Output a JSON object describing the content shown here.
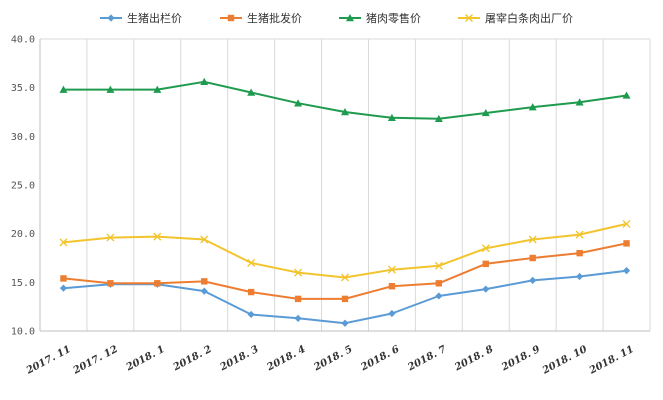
{
  "chart_data": {
    "type": "line",
    "title": "",
    "xlabel": "",
    "ylabel": "",
    "categories": [
      "2017.11",
      "2017.12",
      "2018.1",
      "2018.2",
      "2018.3",
      "2018.4",
      "2018.5",
      "2018.6",
      "2018.7",
      "2018.8",
      "2018.9",
      "2018.10",
      "2018.11"
    ],
    "x_tick_labels": [
      "2017. 11",
      "2017. 12",
      "2018. 1",
      "2018. 2",
      "2018. 3",
      "2018. 4",
      "2018. 5",
      "2018. 6",
      "2018. 7",
      "2018. 8",
      "2018. 9",
      "2018. 10",
      "2018. 11"
    ],
    "ylim": [
      10,
      40
    ],
    "y_ticks": [
      10,
      15,
      20,
      25,
      30,
      35,
      40
    ],
    "y_tick_labels": [
      "10.0",
      "15.0",
      "20.0",
      "25.0",
      "30.0",
      "35.0",
      "40.0"
    ],
    "grid": "vertical",
    "legend_position": "top",
    "series": [
      {
        "name": "生猪出栏价",
        "color": "#5b9bd5",
        "marker": "diamond",
        "values": [
          14.4,
          14.8,
          14.8,
          14.1,
          11.7,
          11.3,
          10.8,
          11.8,
          13.6,
          14.3,
          15.2,
          15.6,
          16.2
        ]
      },
      {
        "name": "生猪批发价",
        "color": "#ed7d31",
        "marker": "square",
        "values": [
          15.4,
          14.9,
          14.9,
          15.1,
          14.0,
          13.3,
          13.3,
          14.6,
          14.9,
          16.9,
          17.5,
          18.0,
          19.0
        ]
      },
      {
        "name": "猪肉零售价",
        "color": "#1e9b4e",
        "marker": "triangle",
        "values": [
          34.8,
          34.8,
          34.8,
          35.6,
          34.5,
          33.4,
          32.5,
          31.9,
          31.8,
          32.4,
          33.0,
          33.5,
          34.2
        ]
      },
      {
        "name": "屠宰白条肉出厂价",
        "color": "#f2c42e",
        "marker": "x",
        "values": [
          19.1,
          19.6,
          19.7,
          19.4,
          17.0,
          16.0,
          15.5,
          16.3,
          16.7,
          18.5,
          19.4,
          19.9,
          21.0
        ]
      }
    ]
  }
}
